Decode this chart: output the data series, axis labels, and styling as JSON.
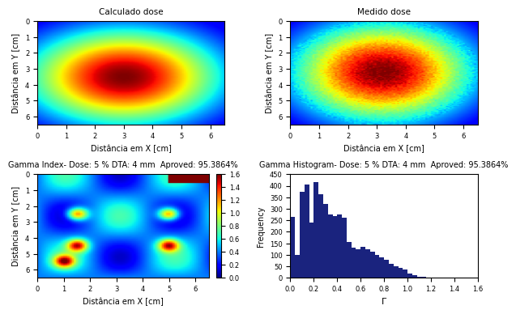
{
  "title_calc": "Calculado dose",
  "title_meas": "Medido dose",
  "title_gamma": "Gamma Index- Dose: 5 % DTA: 4 mm  Aproved: 95.3864%",
  "title_hist": "Gamma Histogram- Dose: 5 % DTA: 4 mm  Aproved: 95.3864%",
  "xlabel": "Distância em X [cm]",
  "ylabel_top": "Distância em Y [cm]",
  "ylabel_gamma": "Distância em Y [cm]",
  "ylabel_hist": "Frequency",
  "xlabel_hist": "Γ",
  "xlim_dose": [
    0,
    6.5
  ],
  "ylim_dose": [
    0,
    6.5
  ],
  "xlim_gamma": [
    0,
    6.5
  ],
  "ylim_gamma": [
    0,
    6.5
  ],
  "xlim_hist": [
    0,
    1.6
  ],
  "ylim_hist": [
    0,
    450
  ],
  "colorbar_ticks_gamma": [
    0,
    0.2,
    0.4,
    0.6,
    0.8,
    1.0,
    1.2,
    1.4,
    1.6
  ],
  "hist_color": "#1a237e",
  "background_color": "#ffffff",
  "title_fontsize": 7.5,
  "label_fontsize": 7,
  "tick_fontsize": 6
}
